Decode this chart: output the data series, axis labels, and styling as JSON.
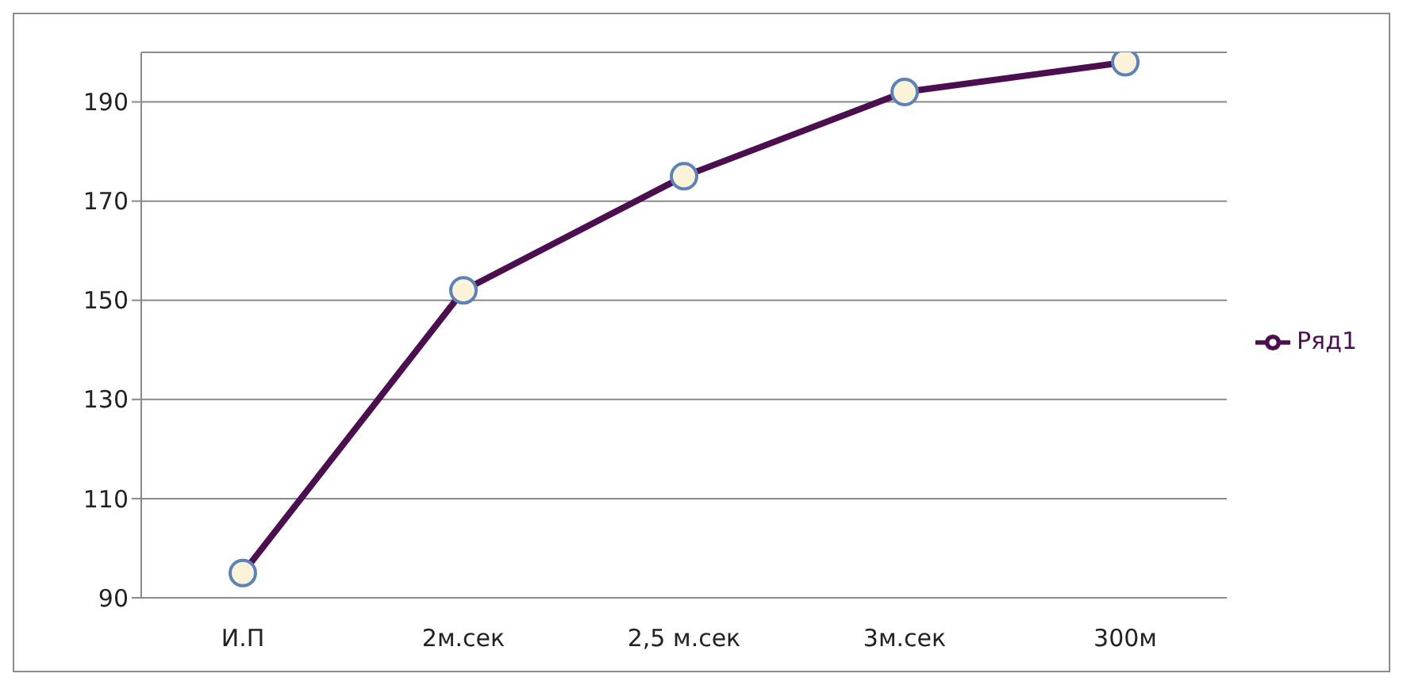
{
  "chart_data": {
    "type": "line",
    "categories": [
      "И.П",
      "2м.сек",
      "2,5 м.сек",
      "3м.сек",
      "300м"
    ],
    "series": [
      {
        "name": "Ряд1",
        "color": "#4b0f50",
        "values": [
          95,
          152,
          175,
          192,
          198
        ]
      }
    ],
    "ylim": [
      90,
      200
    ],
    "yticks": [
      90,
      110,
      130,
      150,
      170,
      190
    ],
    "grid": "y",
    "legend": "right",
    "marker": "circle"
  }
}
